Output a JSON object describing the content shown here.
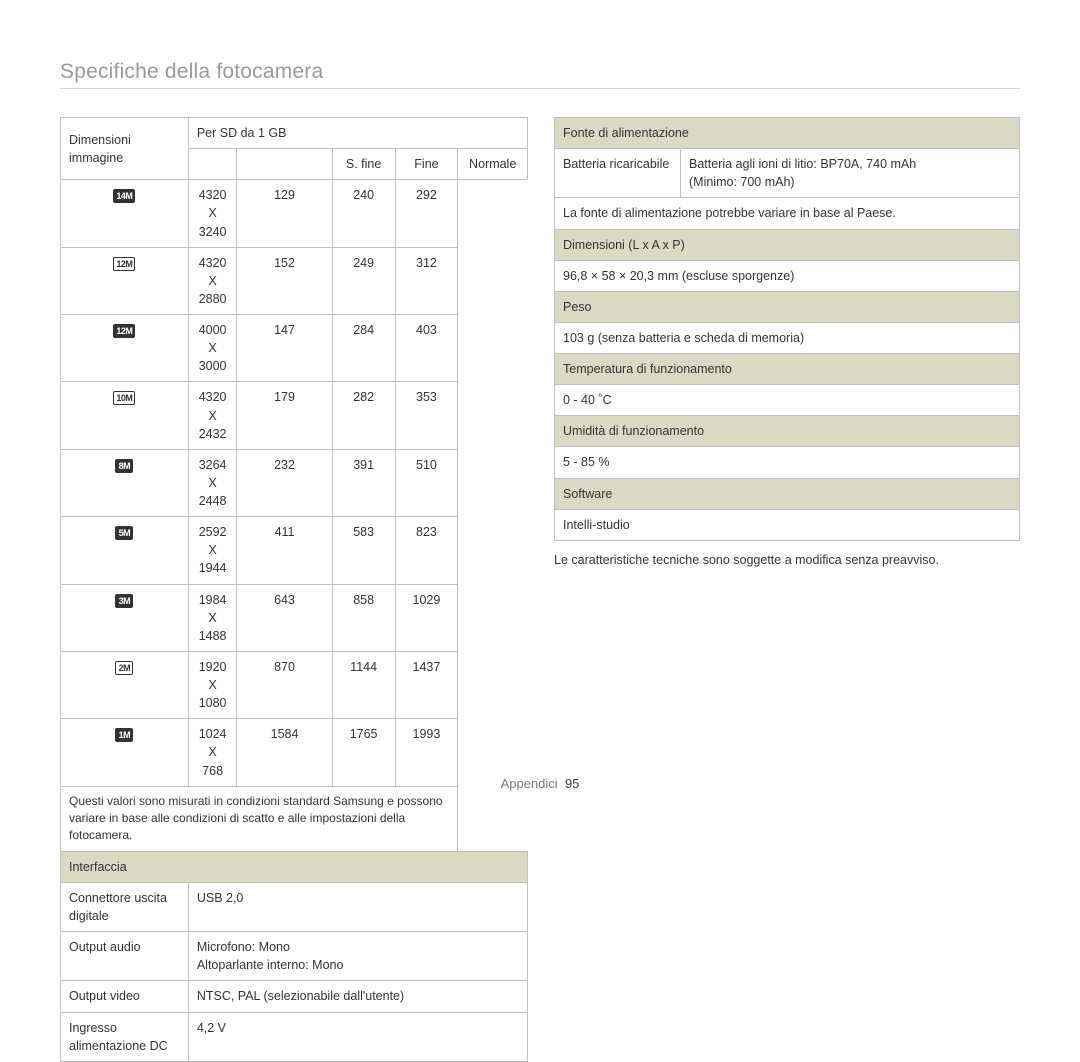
{
  "page": {
    "title": "Specifiche della fotocamera",
    "footer_label": "Appendici",
    "footer_page": "95"
  },
  "colors": {
    "header_bg": "#d9d9c4",
    "border": "#bfbfbf",
    "title_color": "#9a9a9a",
    "text": "#333333",
    "rule": "#d0d0d0"
  },
  "left": {
    "dimensioni_label": "Dimensioni immagine",
    "per_sd_label": "Per SD da 1 GB",
    "col_headers": [
      "S. fine",
      "Fine",
      "Normale"
    ],
    "rows": [
      {
        "icon": "14M",
        "icon_style": "solid",
        "res": "4320 X 3240",
        "vals": [
          "129",
          "240",
          "292"
        ]
      },
      {
        "icon": "12M",
        "icon_style": "outline",
        "res": "4320 X 2880",
        "vals": [
          "152",
          "249",
          "312"
        ]
      },
      {
        "icon": "12M",
        "icon_style": "solid",
        "res": "4000 X 3000",
        "vals": [
          "147",
          "284",
          "403"
        ]
      },
      {
        "icon": "10M",
        "icon_style": "outline",
        "res": "4320 X 2432",
        "vals": [
          "179",
          "282",
          "353"
        ]
      },
      {
        "icon": "8M",
        "icon_style": "solid",
        "res": "3264 X 2448",
        "vals": [
          "232",
          "391",
          "510"
        ]
      },
      {
        "icon": "5M",
        "icon_style": "solid",
        "res": "2592 X 1944",
        "vals": [
          "411",
          "583",
          "823"
        ]
      },
      {
        "icon": "3M",
        "icon_style": "solid",
        "res": "1984 X 1488",
        "vals": [
          "643",
          "858",
          "1029"
        ]
      },
      {
        "icon": "2M",
        "icon_style": "outline",
        "res": "1920 X 1080",
        "vals": [
          "870",
          "1144",
          "1437"
        ]
      },
      {
        "icon": "1M",
        "icon_style": "solid",
        "res": "1024 X 768",
        "vals": [
          "1584",
          "1765",
          "1993"
        ]
      }
    ],
    "note": "Questi valori sono misurati in condizioni standard Samsung e possono variare in base alle condizioni di scatto e alle impostazioni della fotocamera.",
    "interfaccia_header": "Interfaccia",
    "interface_rows": [
      {
        "k": "Connettore uscita digitale",
        "v": "USB 2,0"
      },
      {
        "k": "Output audio",
        "v": "Microfono: Mono\nAltoparlante interno: Mono"
      },
      {
        "k": "Output video",
        "v": "NTSC, PAL (selezionabile dall'utente)"
      },
      {
        "k": "Ingresso alimentazione DC",
        "v": "4,2 V"
      }
    ]
  },
  "right": {
    "sections": [
      {
        "header": "Fonte di alimentazione",
        "rows": [
          {
            "k": "Batteria ricaricabile",
            "v": "Batteria agli ioni di litio: BP70A, 740 mAh\n(Minimo: 700 mAh)"
          },
          {
            "full": "La fonte di alimentazione potrebbe variare in base al Paese."
          }
        ]
      },
      {
        "header": "Dimensioni (L x A x P)",
        "rows": [
          {
            "full": "96,8 × 58 × 20,3 mm (escluse sporgenze)"
          }
        ]
      },
      {
        "header": "Peso",
        "rows": [
          {
            "full": "103 g (senza batteria e scheda di memoria)"
          }
        ]
      },
      {
        "header": "Temperatura di funzionamento",
        "rows": [
          {
            "full": "0 - 40 ˚C"
          }
        ]
      },
      {
        "header": "Umidità di funzionamento",
        "rows": [
          {
            "full": "5 - 85 %"
          }
        ]
      },
      {
        "header": "Software",
        "rows": [
          {
            "full": "Intelli-studio"
          }
        ]
      }
    ],
    "disclaimer": "Le caratteristiche tecniche sono soggette a modifica senza preavviso."
  }
}
